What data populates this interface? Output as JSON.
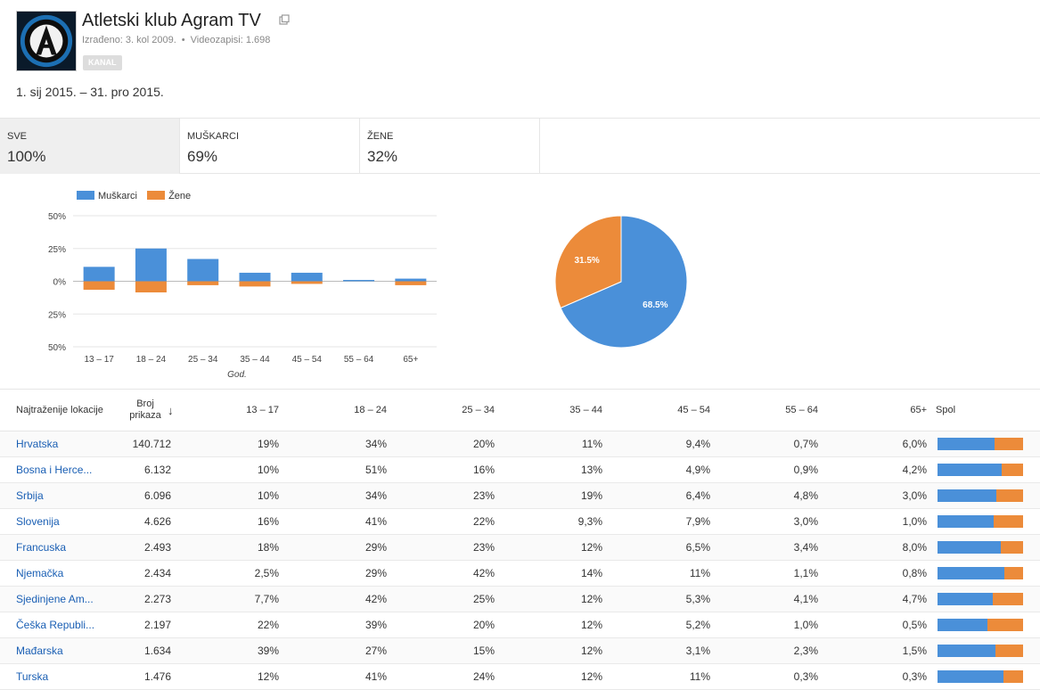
{
  "channel": {
    "title": "Atletski klub Agram TV",
    "created": "Izrađeno: 3. kol 2009.",
    "videos": "Videozapisi: 1.698",
    "badge": "KANAL"
  },
  "date_range": "1. sij 2015. – 31. pro 2015.",
  "tabs": [
    {
      "label": "SVE",
      "value": "100%"
    },
    {
      "label": "MUŠKARCI",
      "value": "69%"
    },
    {
      "label": "ŽENE",
      "value": "32%"
    }
  ],
  "colors": {
    "male": "#4a90d9",
    "female": "#ec8b3a"
  },
  "chart_data": [
    {
      "type": "bar",
      "categories": [
        "13 – 17",
        "18 – 24",
        "25 – 34",
        "35 – 44",
        "45 – 54",
        "55 – 64",
        "65+"
      ],
      "series": [
        {
          "name": "Muškarci",
          "values": [
            11,
            25,
            17,
            6.5,
            6.5,
            1,
            2
          ]
        },
        {
          "name": "Žene",
          "values": [
            6.5,
            8.5,
            3,
            4,
            2,
            0,
            3
          ]
        }
      ],
      "xlabel": "God.",
      "ylim": [
        -50,
        50
      ],
      "yticks": [
        "50%",
        "25%",
        "0%",
        "25%",
        "50%"
      ],
      "legend": "top-left",
      "grid": true
    },
    {
      "type": "pie",
      "labels": [
        "Muškarci",
        "Žene"
      ],
      "values": [
        68.5,
        31.5
      ],
      "value_labels": [
        "68.5%",
        "31.5%"
      ]
    }
  ],
  "table": {
    "headers": {
      "location": "Najtraženije lokacije",
      "views": "Broj prikaza",
      "ages": [
        "13 – 17",
        "18 – 24",
        "25 – 34",
        "35 – 44",
        "45 – 54",
        "55 – 64",
        "65+"
      ],
      "gender": "Spol"
    },
    "rows": [
      {
        "name": "Hrvatska",
        "views": "140.712",
        "ages": [
          "19%",
          "34%",
          "20%",
          "11%",
          "9,4%",
          "0,7%",
          "6,0%"
        ],
        "male": 0.67
      },
      {
        "name": "Bosna i Herce...",
        "views": "6.132",
        "ages": [
          "10%",
          "51%",
          "16%",
          "13%",
          "4,9%",
          "0,9%",
          "4,2%"
        ],
        "male": 0.75
      },
      {
        "name": "Srbija",
        "views": "6.096",
        "ages": [
          "10%",
          "34%",
          "23%",
          "19%",
          "6,4%",
          "4,8%",
          "3,0%"
        ],
        "male": 0.69
      },
      {
        "name": "Slovenija",
        "views": "4.626",
        "ages": [
          "16%",
          "41%",
          "22%",
          "9,3%",
          "7,9%",
          "3,0%",
          "1,0%"
        ],
        "male": 0.66
      },
      {
        "name": "Francuska",
        "views": "2.493",
        "ages": [
          "18%",
          "29%",
          "23%",
          "12%",
          "6,5%",
          "3,4%",
          "8,0%"
        ],
        "male": 0.74
      },
      {
        "name": "Njemačka",
        "views": "2.434",
        "ages": [
          "2,5%",
          "29%",
          "42%",
          "14%",
          "11%",
          "1,1%",
          "0,8%"
        ],
        "male": 0.78
      },
      {
        "name": "Sjedinjene Am...",
        "views": "2.273",
        "ages": [
          "7,7%",
          "42%",
          "25%",
          "12%",
          "5,3%",
          "4,1%",
          "4,7%"
        ],
        "male": 0.65
      },
      {
        "name": "Češka Republi...",
        "views": "2.197",
        "ages": [
          "22%",
          "39%",
          "20%",
          "12%",
          "5,2%",
          "1,0%",
          "0,5%"
        ],
        "male": 0.58
      },
      {
        "name": "Mađarska",
        "views": "1.634",
        "ages": [
          "39%",
          "27%",
          "15%",
          "12%",
          "3,1%",
          "2,3%",
          "1,5%"
        ],
        "male": 0.68
      },
      {
        "name": "Turska",
        "views": "1.476",
        "ages": [
          "12%",
          "41%",
          "24%",
          "12%",
          "11%",
          "0,3%",
          "0,3%"
        ],
        "male": 0.77
      }
    ]
  }
}
